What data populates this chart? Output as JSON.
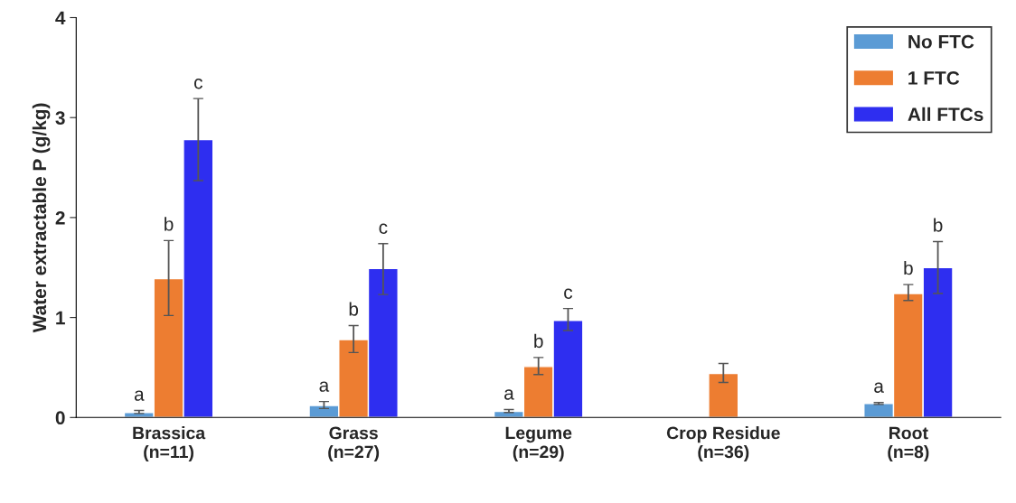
{
  "chart_data": {
    "type": "bar",
    "ylabel": "Water extractable P (g/kg)",
    "categories": [
      "Brassica\n(n=11)",
      "Grass\n(n=27)",
      "Legume\n(n=29)",
      "Crop Residue\n(n=36)",
      "Root\n(n=8)"
    ],
    "series": [
      {
        "name": "No FTC",
        "color": "#5b9bd5",
        "values": [
          0.05,
          0.12,
          0.06,
          null,
          0.14
        ],
        "errors": [
          [
            0.04,
            0.07
          ],
          [
            0.09,
            0.16
          ],
          [
            0.05,
            0.08
          ],
          null,
          [
            0.13,
            0.15
          ]
        ],
        "value_labels": [
          "a",
          "a",
          "a",
          null,
          "a"
        ]
      },
      {
        "name": "1 FTC",
        "color": "#ed7d31",
        "values": [
          1.39,
          0.78,
          0.51,
          0.44,
          1.24
        ],
        "errors": [
          [
            1.02,
            1.77
          ],
          [
            0.65,
            0.92
          ],
          [
            0.43,
            0.6
          ],
          [
            0.35,
            0.54
          ],
          [
            1.17,
            1.33
          ]
        ],
        "value_labels": [
          "b",
          "b",
          "b",
          null,
          "b"
        ]
      },
      {
        "name": "All FTCs",
        "color": "#2e2ef0",
        "values": [
          2.78,
          1.49,
          0.97,
          null,
          1.5
        ],
        "errors": [
          [
            2.37,
            3.19
          ],
          [
            1.23,
            1.74
          ],
          [
            0.87,
            1.09
          ],
          null,
          [
            1.24,
            1.76
          ]
        ],
        "value_labels": [
          "c",
          "c",
          "c",
          null,
          "b"
        ]
      }
    ],
    "ylim": [
      0,
      4
    ],
    "yticks": [
      0,
      1,
      2,
      3,
      4
    ],
    "grid": false,
    "legend": "top right"
  }
}
